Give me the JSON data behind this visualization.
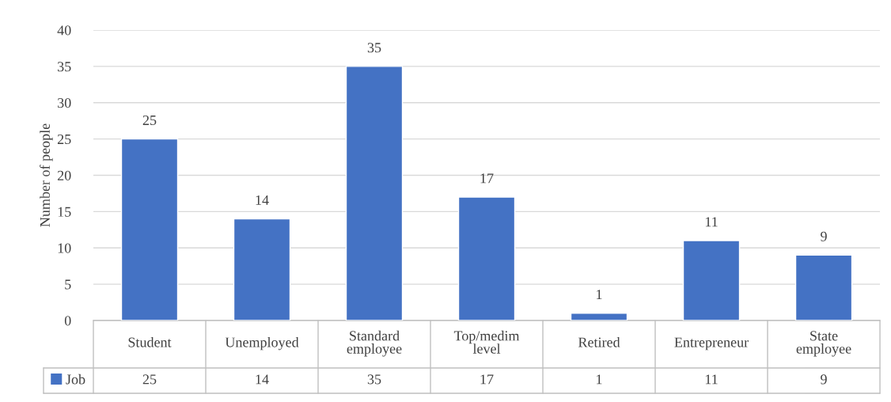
{
  "chart_data": {
    "type": "bar",
    "ylabel": "Number of people",
    "categories": [
      "Student",
      "Unemployed",
      "Standard employee",
      "Top/medim level",
      "Retired",
      "Entrepreneur",
      "State employee"
    ],
    "series": [
      {
        "name": "Job",
        "color": "#4472c4",
        "values": [
          25,
          14,
          35,
          17,
          1,
          11,
          9
        ],
        "value_labels": [
          "25",
          "14",
          "35",
          "17",
          "1",
          "11",
          "9"
        ]
      }
    ],
    "ylim": [
      0,
      40
    ],
    "yticks": [
      0,
      5,
      10,
      15,
      20,
      25,
      30,
      35,
      40
    ],
    "grid": "y",
    "data_labels": true,
    "annotations": [
      "25",
      "14",
      "35",
      "17",
      "1",
      "11",
      "9"
    ],
    "legend": "bottom"
  }
}
